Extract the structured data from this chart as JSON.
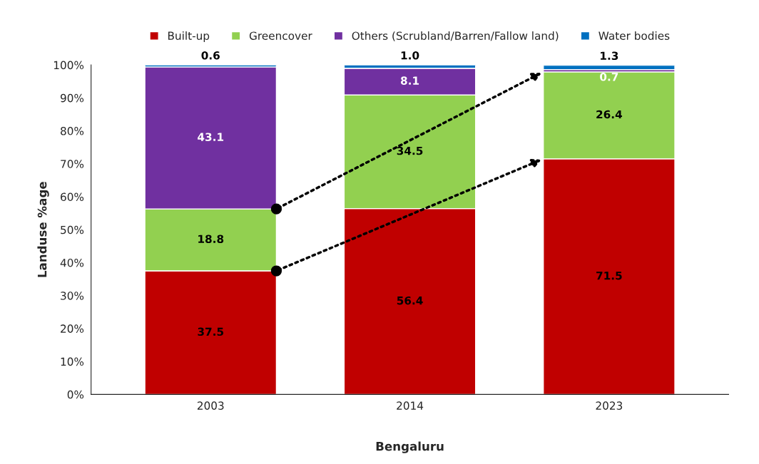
{
  "chart_data": {
    "type": "bar",
    "stacked": true,
    "xlabel": "Bengaluru",
    "ylabel": "Landuse %age",
    "categories": [
      "2003",
      "2014",
      "2023"
    ],
    "series": [
      {
        "name": "Built-up",
        "color": "#c00000",
        "values": [
          37.5,
          56.4,
          71.5
        ],
        "value_labels": [
          "37.5",
          "56.4",
          "71.5"
        ]
      },
      {
        "name": "Greencover",
        "color": "#92d050",
        "values": [
          18.8,
          34.5,
          26.4
        ],
        "value_labels": [
          "18.8",
          "34.5",
          "26.4"
        ]
      },
      {
        "name": "Others (Scrubland/Barren/Fallow land)",
        "color": "#7030a0",
        "values": [
          43.1,
          8.1,
          0.7
        ],
        "value_labels": [
          "43.1",
          "8.1",
          "0.7"
        ]
      },
      {
        "name": "Water bodies",
        "color": "#0070c0",
        "values": [
          0.6,
          1.0,
          1.3
        ],
        "value_labels": [
          "0.6",
          "1.0",
          "1.3"
        ]
      }
    ],
    "ylim": [
      0,
      100
    ],
    "yticks": [
      {
        "value": 0,
        "label": "0%"
      },
      {
        "value": 10,
        "label": "10%"
      },
      {
        "value": 20,
        "label": "20%"
      },
      {
        "value": 30,
        "label": "30%"
      },
      {
        "value": 40,
        "label": "40%"
      },
      {
        "value": 50,
        "label": "50%"
      },
      {
        "value": 60,
        "label": "60%"
      },
      {
        "value": 70,
        "label": "70%"
      },
      {
        "value": 80,
        "label": "80%"
      },
      {
        "value": 90,
        "label": "90%"
      },
      {
        "value": 100,
        "label": "100%"
      }
    ],
    "grid": false,
    "legend": "top"
  }
}
